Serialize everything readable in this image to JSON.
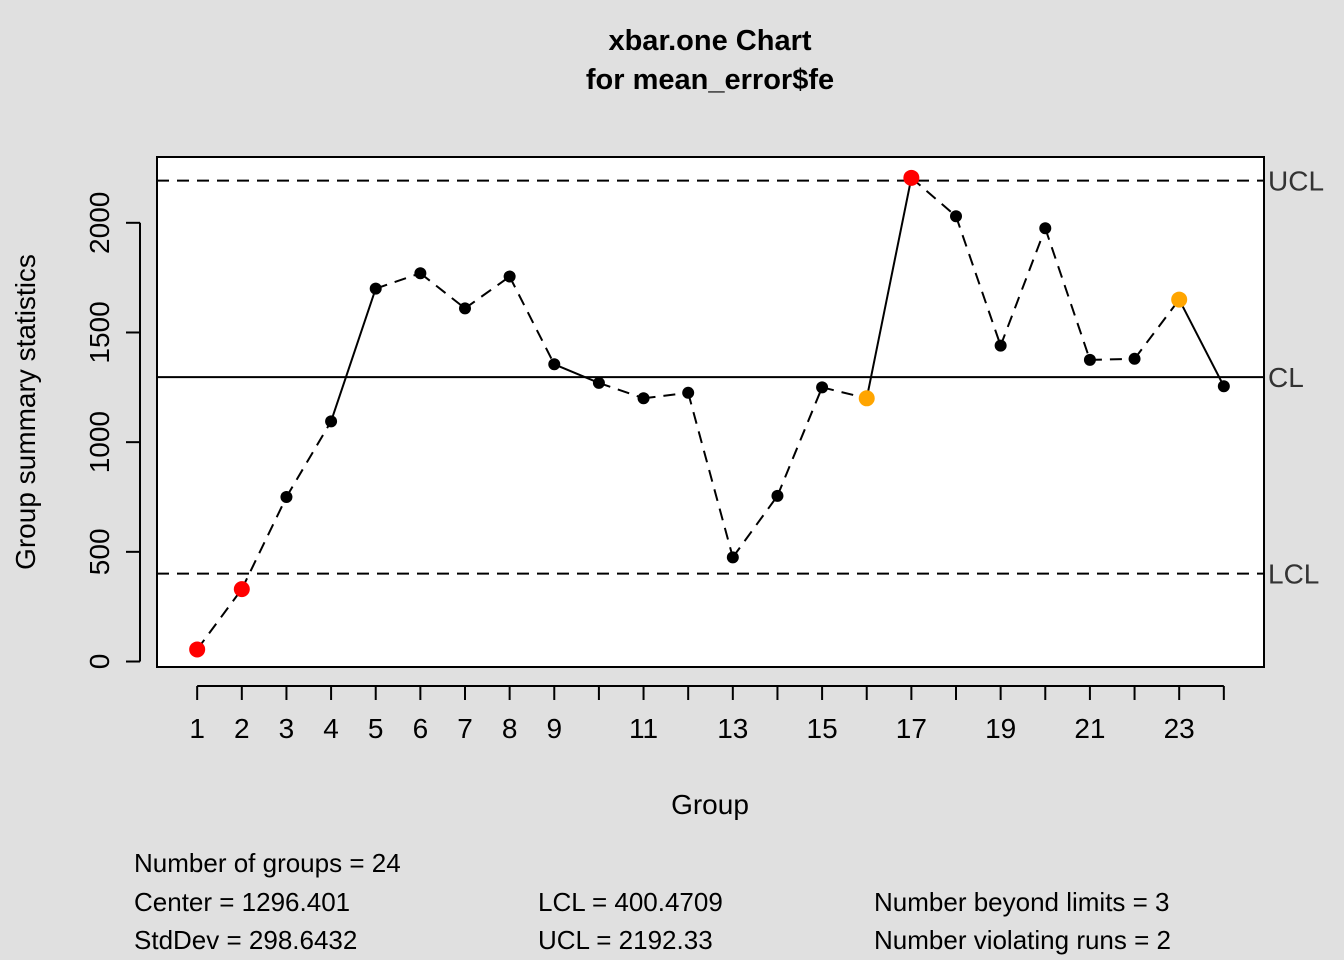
{
  "chart_data": {
    "type": "line",
    "title": "xbar.one Chart",
    "subtitle": "for mean_error$fe",
    "xlabel": "Group",
    "ylabel": "Group summary statistics",
    "x": [
      1,
      2,
      3,
      4,
      5,
      6,
      7,
      8,
      9,
      10,
      11,
      12,
      13,
      14,
      15,
      16,
      17,
      18,
      19,
      20,
      21,
      22,
      23,
      24
    ],
    "x_tick_labels": [
      "1",
      "2",
      "3",
      "4",
      "5",
      "6",
      "7",
      "8",
      "9",
      "",
      "11",
      "",
      "13",
      "",
      "15",
      "",
      "17",
      "",
      "19",
      "",
      "21",
      "",
      "23",
      ""
    ],
    "y_ticks": [
      0,
      500,
      1000,
      1500,
      2000
    ],
    "y_tick_labels": [
      "0",
      "500",
      "1000",
      "1500",
      "2000"
    ],
    "xlim": [
      0.1,
      24.9
    ],
    "ylim": [
      -25,
      2300
    ],
    "grid": false,
    "series": [
      {
        "values": [
          55,
          330,
          750,
          1095,
          1700,
          1770,
          1610,
          1755,
          1355,
          1270,
          1200,
          1225,
          475,
          755,
          1250,
          1200,
          2205,
          2030,
          1440,
          1975,
          1375,
          1380,
          1650,
          1255
        ],
        "point_status": [
          "beyond",
          "beyond",
          "normal",
          "normal",
          "normal",
          "normal",
          "normal",
          "normal",
          "normal",
          "normal",
          "normal",
          "normal",
          "normal",
          "normal",
          "normal",
          "violating",
          "beyond",
          "normal",
          "normal",
          "normal",
          "normal",
          "normal",
          "violating",
          "normal"
        ]
      }
    ],
    "colors": {
      "normal": "#000000",
      "beyond": "#ff0000",
      "violating": "#ffa500",
      "background": "#e0e0e0",
      "plot_background": "#ffffff"
    },
    "control_limits": {
      "ucl": {
        "value": 2192.33,
        "label": "UCL"
      },
      "cl": {
        "value": 1296.401,
        "label": "CL"
      },
      "lcl": {
        "value": 400.4709,
        "label": "LCL"
      }
    }
  },
  "stats": {
    "groups": "Number of groups = 24",
    "center": "Center = 1296.401",
    "stddev": "StdDev = 298.6432",
    "lcl": "LCL = 400.4709",
    "ucl": "UCL = 2192.33",
    "beyond": "Number beyond limits = 3",
    "violating": "Number violating runs = 2"
  }
}
